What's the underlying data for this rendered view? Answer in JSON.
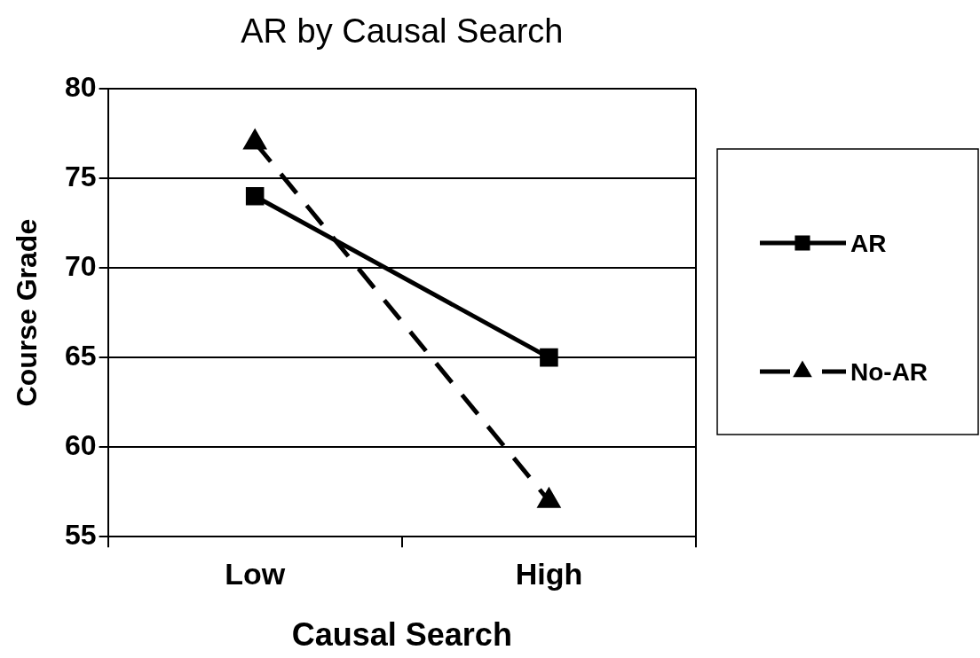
{
  "chart_data": {
    "type": "line",
    "title": "AR by Causal Search",
    "xlabel": "Causal Search",
    "ylabel": "Course Grade",
    "categories": [
      "Low",
      "High"
    ],
    "series": [
      {
        "name": "AR",
        "color": "#000000",
        "values": [
          74,
          65
        ],
        "marker": "square",
        "line_style": "solid"
      },
      {
        "name": "No-AR",
        "color": "#000000",
        "values": [
          77,
          57
        ],
        "marker": "triangle",
        "line_style": "dashed"
      }
    ],
    "ylim": [
      55,
      80
    ],
    "yticks": [
      55,
      60,
      65,
      70,
      75,
      80
    ],
    "grid": "y",
    "legend": "right"
  }
}
